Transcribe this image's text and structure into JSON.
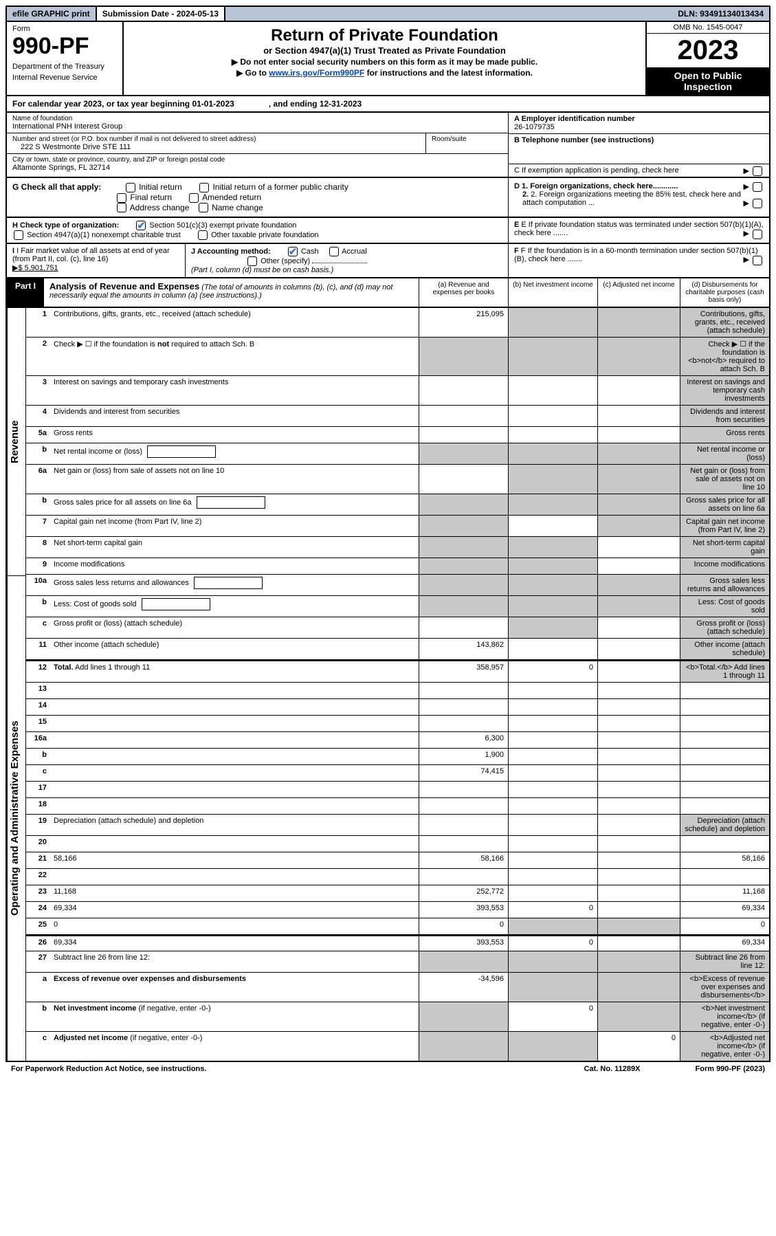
{
  "topbar": {
    "efile": "efile GRAPHIC print",
    "submission_label": "Submission Date - ",
    "submission_date": "2024-05-13",
    "dln_label": "DLN: ",
    "dln": "93491134013434"
  },
  "header": {
    "form_label": "Form",
    "form_num": "990-PF",
    "dept1": "Department of the Treasury",
    "dept2": "Internal Revenue Service",
    "title": "Return of Private Foundation",
    "subtitle": "or Section 4947(a)(1) Trust Treated as Private Foundation",
    "note1": "▶ Do not enter social security numbers on this form as it may be made public.",
    "note2_a": "▶ Go to ",
    "note2_link": "www.irs.gov/Form990PF",
    "note2_b": " for instructions and the latest information.",
    "omb": "OMB No. 1545-0047",
    "year": "2023",
    "open": "Open to Public Inspection"
  },
  "cal_year": "For calendar year 2023, or tax year beginning 01-01-2023               , and ending 12-31-2023",
  "ident": {
    "name_lbl": "Name of foundation",
    "name": "International PNH Interest Group",
    "a_lbl": "A Employer identification number",
    "ein": "26-1079735",
    "addr_lbl": "Number and street (or P.O. box number if mail is not delivered to street address)",
    "addr": "222 S Westmonte Drive STE 111",
    "room_lbl": "Room/suite",
    "b_lbl": "B Telephone number (see instructions)",
    "city_lbl": "City or town, state or province, country, and ZIP or foreign postal code",
    "city": "Altamonte Springs, FL  32714",
    "c_lbl": "C If exemption application is pending, check here"
  },
  "checks": {
    "g_lbl": "G Check all that apply:",
    "g1": "Initial return",
    "g2": "Initial return of a former public charity",
    "g3": "Final return",
    "g4": "Amended return",
    "g5": "Address change",
    "g6": "Name change",
    "d1": "D 1. Foreign organizations, check here............",
    "d2": "2. Foreign organizations meeting the 85% test, check here and attach computation ...",
    "h_lbl": "H Check type of organization:",
    "h1": "Section 501(c)(3) exempt private foundation",
    "h2": "Section 4947(a)(1) nonexempt charitable trust",
    "h3": "Other taxable private foundation",
    "e_lbl": "E If private foundation status was terminated under section 507(b)(1)(A), check here .......",
    "i_lbl": "I Fair market value of all assets at end of year (from Part II, col. (c), line 16)",
    "i_val": "▶$  5,901,751",
    "j_lbl": "J Accounting method:",
    "j1": "Cash",
    "j2": "Accrual",
    "j3": "Other (specify)",
    "j_note": "(Part I, column (d) must be on cash basis.)",
    "f_lbl": "F If the foundation is in a 60-month termination under section 507(b)(1)(B), check here ......."
  },
  "part1": {
    "label": "Part I",
    "title": "Analysis of Revenue and Expenses",
    "note": " (The total of amounts in columns (b), (c), and (d) may not necessarily equal the amounts in column (a) (see instructions).)",
    "col_a": "(a)   Revenue and expenses per books",
    "col_b": "(b)   Net investment income",
    "col_c": "(c)   Adjusted net income",
    "col_d": "(d)   Disbursements for charitable purposes (cash basis only)"
  },
  "side": {
    "revenue": "Revenue",
    "expenses": "Operating and Administrative Expenses"
  },
  "rows": [
    {
      "n": "1",
      "d": "Contributions, gifts, grants, etc., received (attach schedule)",
      "a": "215,095",
      "b_sh": true,
      "c_sh": true,
      "d_sh": true
    },
    {
      "n": "2",
      "d": "Check ▶ ☐ if the foundation is <b>not</b> required to attach Sch. B",
      "dots": true,
      "a_sh": true,
      "b_sh": true,
      "c_sh": true,
      "d_sh": true
    },
    {
      "n": "3",
      "d": "Interest on savings and temporary cash investments",
      "a": "",
      "b": "",
      "c": "",
      "d_sh": true
    },
    {
      "n": "4",
      "d": "Dividends and interest from securities",
      "dots": true,
      "a": "",
      "b": "",
      "c": "",
      "d_sh": true
    },
    {
      "n": "5a",
      "d": "Gross rents",
      "dots": true,
      "a": "",
      "b": "",
      "c": "",
      "d_sh": true
    },
    {
      "n": "b",
      "d": "Net rental income or (loss)",
      "sub": true,
      "a_sh": true,
      "b_sh": true,
      "c_sh": true,
      "d_sh": true
    },
    {
      "n": "6a",
      "d": "Net gain or (loss) from sale of assets not on line 10",
      "a": "",
      "b_sh": true,
      "c_sh": true,
      "d_sh": true
    },
    {
      "n": "b",
      "d": "Gross sales price for all assets on line 6a",
      "sub": true,
      "a_sh": true,
      "b_sh": true,
      "c_sh": true,
      "d_sh": true
    },
    {
      "n": "7",
      "d": "Capital gain net income (from Part IV, line 2)",
      "dots": true,
      "a_sh": true,
      "b": "",
      "c_sh": true,
      "d_sh": true
    },
    {
      "n": "8",
      "d": "Net short-term capital gain",
      "dots": true,
      "a_sh": true,
      "b_sh": true,
      "c": "",
      "d_sh": true
    },
    {
      "n": "9",
      "d": "Income modifications",
      "dots": true,
      "a_sh": true,
      "b_sh": true,
      "c": "",
      "d_sh": true
    },
    {
      "n": "10a",
      "d": "Gross sales less returns and allowances",
      "sub": true,
      "a_sh": true,
      "b_sh": true,
      "c_sh": true,
      "d_sh": true
    },
    {
      "n": "b",
      "d": "Less: Cost of goods sold",
      "dots": true,
      "sub": true,
      "a_sh": true,
      "b_sh": true,
      "c_sh": true,
      "d_sh": true
    },
    {
      "n": "c",
      "d": "Gross profit or (loss) (attach schedule)",
      "dots": true,
      "a": "",
      "b_sh": true,
      "c": "",
      "d_sh": true
    },
    {
      "n": "11",
      "d": "Other income (attach schedule)",
      "dots": true,
      "a": "143,862",
      "b": "",
      "c": "",
      "d_sh": true
    },
    {
      "n": "12",
      "d": "<b>Total.</b> Add lines 1 through 11",
      "dots": true,
      "a": "358,957",
      "b": "0",
      "c": "",
      "d_sh": true,
      "sep": true
    },
    {
      "n": "13",
      "d": "",
      "a": "",
      "b": "",
      "c": ""
    },
    {
      "n": "14",
      "d": "",
      "dots": true,
      "a": "",
      "b": "",
      "c": ""
    },
    {
      "n": "15",
      "d": "",
      "dots": true,
      "a": "",
      "b": "",
      "c": ""
    },
    {
      "n": "16a",
      "d": "",
      "dots": true,
      "a": "6,300",
      "b": "",
      "c": ""
    },
    {
      "n": "b",
      "d": "",
      "dots": true,
      "a": "1,900",
      "b": "",
      "c": ""
    },
    {
      "n": "c",
      "d": "",
      "dots": true,
      "a": "74,415",
      "b": "",
      "c": ""
    },
    {
      "n": "17",
      "d": "",
      "dots": true,
      "a": "",
      "b": "",
      "c": ""
    },
    {
      "n": "18",
      "d": "",
      "dots": true,
      "a": "",
      "b": "",
      "c": ""
    },
    {
      "n": "19",
      "d": "Depreciation (attach schedule) and depletion",
      "dots": true,
      "a": "",
      "b": "",
      "c": "",
      "d_sh": true
    },
    {
      "n": "20",
      "d": "",
      "dots": true,
      "a": "",
      "b": "",
      "c": ""
    },
    {
      "n": "21",
      "d": "58,166",
      "dots": true,
      "a": "58,166",
      "b": "",
      "c": ""
    },
    {
      "n": "22",
      "d": "",
      "dots": true,
      "a": "",
      "b": "",
      "c": ""
    },
    {
      "n": "23",
      "d": "11,168",
      "dots": true,
      "a": "252,772",
      "b": "",
      "c": ""
    },
    {
      "n": "24",
      "d": "69,334",
      "dots": true,
      "a": "393,553",
      "b": "0",
      "c": ""
    },
    {
      "n": "25",
      "d": "0",
      "dots": true,
      "a": "0",
      "b_sh": true,
      "c_sh": true
    },
    {
      "n": "26",
      "d": "69,334",
      "a": "393,553",
      "b": "0",
      "c": "",
      "sep": true
    },
    {
      "n": "27",
      "d": "Subtract line 26 from line 12:",
      "a_sh": true,
      "b_sh": true,
      "c_sh": true,
      "d_sh": true
    },
    {
      "n": "a",
      "d": "<b>Excess of revenue over expenses and disbursements</b>",
      "a": "-34,596",
      "b_sh": true,
      "c_sh": true,
      "d_sh": true
    },
    {
      "n": "b",
      "d": "<b>Net investment income</b> (if negative, enter -0-)",
      "a_sh": true,
      "b": "0",
      "c_sh": true,
      "d_sh": true
    },
    {
      "n": "c",
      "d": "<b>Adjusted net income</b> (if negative, enter -0-)",
      "dots": true,
      "a_sh": true,
      "b_sh": true,
      "c": "0",
      "d_sh": true
    }
  ],
  "footer": {
    "left": "For Paperwork Reduction Act Notice, see instructions.",
    "mid": "Cat. No. 11289X",
    "right": "Form 990-PF (2023)"
  },
  "colors": {
    "topbar_bg": "#b8c5d6",
    "shaded": "#c8c8c8",
    "link": "#0645ad",
    "check": "#3b7ddd"
  }
}
